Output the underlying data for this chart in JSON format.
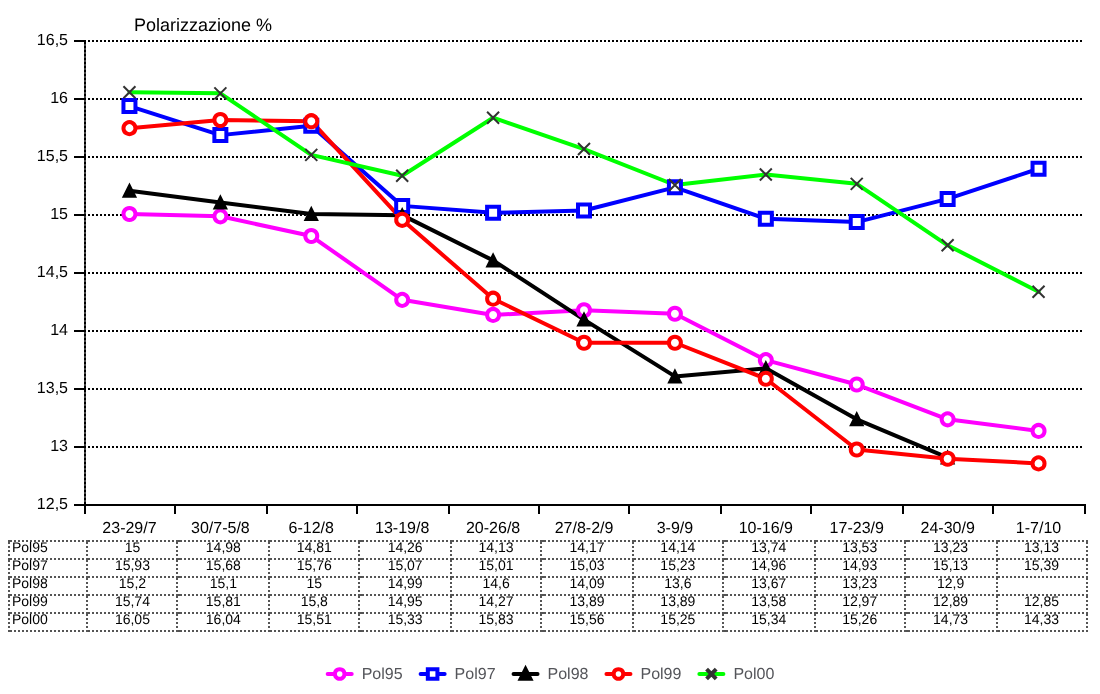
{
  "chart_data": {
    "type": "line",
    "title": "Polarizzazione %",
    "categories": [
      "23-29/7",
      "30/7-5/8",
      "6-12/8",
      "13-19/8",
      "20-26/8",
      "27/8-2/9",
      "3-9/9",
      "10-16/9",
      "17-23/9",
      "24-30/9",
      "1-7/10"
    ],
    "series": [
      {
        "name": "Pol95",
        "color": "#ff00ff",
        "marker": "circle",
        "values": [
          15,
          14.98,
          14.81,
          14.26,
          14.13,
          14.17,
          14.14,
          13.74,
          13.53,
          13.23,
          13.13
        ],
        "value_labels": [
          "15",
          "14,98",
          "14,81",
          "14,26",
          "14,13",
          "14,17",
          "14,14",
          "13,74",
          "13,53",
          "13,23",
          "13,13"
        ]
      },
      {
        "name": "Pol97",
        "color": "#0000ff",
        "marker": "square",
        "values": [
          15.93,
          15.68,
          15.76,
          15.07,
          15.01,
          15.03,
          15.23,
          14.96,
          14.93,
          15.13,
          15.39
        ],
        "value_labels": [
          "15,93",
          "15,68",
          "15,76",
          "15,07",
          "15,01",
          "15,03",
          "15,23",
          "14,96",
          "14,93",
          "15,13",
          "15,39"
        ]
      },
      {
        "name": "Pol98",
        "color": "#000000",
        "marker": "triangle",
        "values": [
          15.2,
          15.1,
          15,
          14.99,
          14.6,
          14.09,
          13.6,
          13.67,
          13.23,
          12.9,
          null
        ],
        "value_labels": [
          "15,2",
          "15,1",
          "15",
          "14,99",
          "14,6",
          "14,09",
          "13,6",
          "13,67",
          "13,23",
          "12,9",
          null
        ]
      },
      {
        "name": "Pol99",
        "color": "#ff0000",
        "marker": "circle",
        "values": [
          15.74,
          15.81,
          15.8,
          14.95,
          14.27,
          13.89,
          13.89,
          13.58,
          12.97,
          12.89,
          12.85
        ],
        "value_labels": [
          "15,74",
          "15,81",
          "15,8",
          "14,95",
          "14,27",
          "13,89",
          "13,89",
          "13,58",
          "12,97",
          "12,89",
          "12,85"
        ]
      },
      {
        "name": "Pol00",
        "color": "#00ff00",
        "marker": "cross",
        "values": [
          16.05,
          16.04,
          15.51,
          15.33,
          15.83,
          15.56,
          15.25,
          15.34,
          15.26,
          14.73,
          14.33
        ],
        "value_labels": [
          "16,05",
          "16,04",
          "15,51",
          "15,33",
          "15,83",
          "15,56",
          "15,25",
          "15,34",
          "15,26",
          "14,73",
          "14,33"
        ]
      }
    ],
    "ylim": [
      12.5,
      16.5
    ],
    "yticks": [
      {
        "value": 12.5,
        "label": "12,5"
      },
      {
        "value": 13,
        "label": "13"
      },
      {
        "value": 13.5,
        "label": "13,5"
      },
      {
        "value": 14,
        "label": "14"
      },
      {
        "value": 14.5,
        "label": "14,5"
      },
      {
        "value": 15,
        "label": "15"
      },
      {
        "value": 15.5,
        "label": "15,5"
      },
      {
        "value": 16,
        "label": "16"
      },
      {
        "value": 16.5,
        "label": "16,5"
      }
    ],
    "grid": "y",
    "legend": "bottom",
    "line_style": "solid"
  }
}
